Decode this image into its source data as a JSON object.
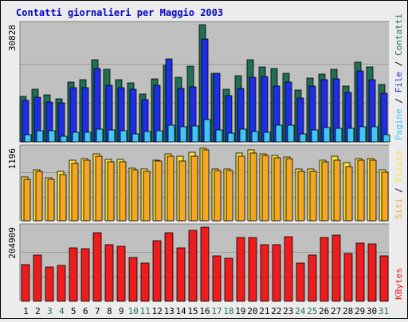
{
  "colors": {
    "background": "#ececec",
    "plot_bg": "#c0c0c0",
    "title": "#0000cc",
    "pagine": "#226f54",
    "file": "#1f2ee6",
    "contatti": "#41c6f4",
    "siti": "#f5a623",
    "visite": "#f7e338",
    "kbytes": "#ee1c1c",
    "weekend_day": "#226f54",
    "weekday": "#000000"
  },
  "chart_data": {
    "type": "bar",
    "title": "Contatti giornalieri per Maggio 2003",
    "categories": [
      "1",
      "2",
      "3",
      "4",
      "5",
      "6",
      "7",
      "8",
      "9",
      "10",
      "11",
      "12",
      "13",
      "14",
      "15",
      "16",
      "17",
      "18",
      "19",
      "20",
      "21",
      "22",
      "23",
      "24",
      "25",
      "26",
      "27",
      "28",
      "29",
      "30",
      "31"
    ],
    "weekend_days": [
      "3",
      "4",
      "10",
      "11",
      "17",
      "18",
      "24",
      "25",
      "31"
    ],
    "panels": [
      {
        "id": "top",
        "max_label": "30828",
        "ylim": [
          0,
          30828
        ],
        "series": [
          {
            "name": "Pagine",
            "color": "#226f54",
            "values": [
              12000,
              13800,
              12300,
              11300,
              15800,
              16400,
              21600,
              19000,
              16300,
              15600,
              12600,
              16500,
              20200,
              16900,
              20000,
              30828,
              18100,
              13900,
              17400,
              21500,
              19800,
              19300,
              18000,
              13600,
              16700,
              17800,
              19000,
              14600,
              21000,
              19800,
              15100
            ]
          },
          {
            "name": "File",
            "color": "#1f2ee6",
            "values": [
              11000,
              11700,
              10500,
              10200,
              14200,
              14200,
              19300,
              14900,
              14200,
              13900,
              11100,
              14900,
              21900,
              14100,
              14500,
              27100,
              18100,
              12100,
              14100,
              17000,
              17300,
              14700,
              15700,
              11500,
              14700,
              16400,
              16500,
              13100,
              18700,
              16400,
              12800
            ]
          },
          {
            "name": "Contatti",
            "color": "#41c6f4",
            "values": [
              1800,
              3000,
              2900,
              1400,
              2500,
              2500,
              3400,
              3100,
              2900,
              2000,
              2800,
              2900,
              4400,
              4000,
              4100,
              5900,
              3100,
              2300,
              3400,
              2700,
              2600,
              4400,
              4300,
              2200,
              3200,
              3700,
              3500,
              3500,
              4000,
              4000,
              1900
            ]
          }
        ]
      },
      {
        "id": "middle",
        "max_label": "1196",
        "ylim": [
          0,
          1196
        ],
        "series": [
          {
            "name": "Visite",
            "color": "#f7e338",
            "values": [
              720,
              840,
              710,
              810,
              1000,
              1030,
              1110,
              1010,
              1010,
              870,
              850,
              1000,
              1110,
              1060,
              1130,
              1196,
              850,
              860,
              1120,
              1170,
              1110,
              1080,
              1050,
              850,
              850,
              1000,
              1070,
              960,
              1030,
              1020,
              840
            ]
          },
          {
            "name": "Siti",
            "color": "#f5a623",
            "values": [
              680,
              810,
              680,
              760,
              950,
              1000,
              1060,
              970,
              970,
              840,
              820,
              980,
              1060,
              980,
              1060,
              1170,
              830,
              830,
              1070,
              1120,
              1080,
              1040,
              1020,
              810,
              810,
              970,
              1000,
              900,
              1000,
              1000,
              800
            ]
          }
        ]
      },
      {
        "id": "bottom",
        "max_label": "204909",
        "ylim": [
          0,
          204909
        ],
        "series": [
          {
            "name": "KBytes",
            "color": "#ee1c1c",
            "values": [
              101000,
              128000,
              95000,
              99000,
              147000,
              145000,
              189000,
              156000,
              151000,
              121000,
              105000,
              168000,
              189000,
              147000,
              195000,
              204909,
              125000,
              120000,
              176000,
              176000,
              157000,
              157000,
              178000,
              105000,
              127000,
              176000,
              183000,
              133000,
              161000,
              158000,
              125000
            ]
          }
        ]
      }
    ]
  },
  "right_labels": {
    "top": [
      {
        "text": "Pagine",
        "color": "#41c6f4"
      },
      {
        "text": " / ",
        "color": "#000000"
      },
      {
        "text": "File",
        "color": "#1f2ee6"
      },
      {
        "text": " / ",
        "color": "#000000"
      },
      {
        "text": "Contatti",
        "color": "#226f54"
      }
    ],
    "middle": [
      {
        "text": "Siti",
        "color": "#f5a623"
      },
      {
        "text": " / ",
        "color": "#000000"
      },
      {
        "text": "Visite",
        "color": "#f7e338"
      }
    ],
    "bottom": [
      {
        "text": "KBytes",
        "color": "#ee1c1c"
      }
    ]
  }
}
